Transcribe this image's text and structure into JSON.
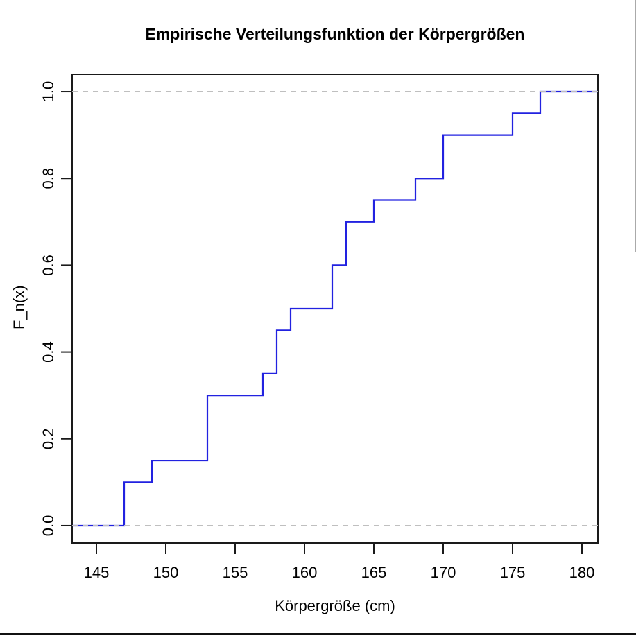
{
  "chart_data": {
    "type": "line",
    "subtype": "ecdf-step",
    "title": "Empirische Verteilungsfunktion der Körpergrößen",
    "xlabel": "Körpergröße (cm)",
    "ylabel": "F_n(x)",
    "xlim": [
      143.25,
      181.15
    ],
    "ylim": [
      -0.04,
      1.04
    ],
    "x_ticks": [
      145,
      150,
      155,
      160,
      165,
      170,
      175,
      180
    ],
    "y_ticks": [
      0.0,
      0.2,
      0.4,
      0.6,
      0.8,
      1.0
    ],
    "grid": false,
    "legend": "none",
    "n": 20,
    "sample_values_cm": [
      147,
      147,
      149,
      153,
      153,
      153,
      157,
      158,
      158,
      159,
      162,
      162,
      163,
      163,
      165,
      168,
      170,
      170,
      175,
      177
    ],
    "steps": {
      "jump_x": [
        147,
        149,
        153,
        157,
        158,
        159,
        162,
        163,
        165,
        168,
        170,
        175,
        177
      ],
      "cum_prob": [
        0.1,
        0.15,
        0.3,
        0.35,
        0.45,
        0.5,
        0.6,
        0.7,
        0.75,
        0.8,
        0.9,
        0.95,
        1.0
      ]
    },
    "ref_lines": {
      "h": [
        0,
        1
      ],
      "style": "dashed",
      "color": "#bfbfbf"
    },
    "colors": {
      "line": "#2222e0",
      "axis": "#1a1a1a",
      "text": "#000000",
      "background": "#ffffff"
    }
  },
  "window": {
    "scrollbar_present": "true"
  }
}
